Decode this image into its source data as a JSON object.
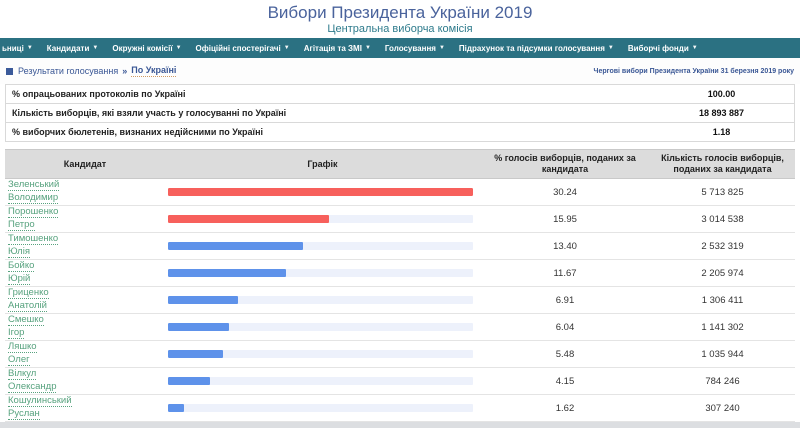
{
  "header": {
    "title": "Вибори Президента України 2019",
    "subtitle": "Центральна виборча комісія"
  },
  "nav": {
    "caret": "▼",
    "items": [
      {
        "label": "ьниці"
      },
      {
        "label": "Кандидати"
      },
      {
        "label": "Окружні комісії"
      },
      {
        "label": "Офіційні спостерігачі"
      },
      {
        "label": "Агітація та ЗМІ"
      },
      {
        "label": "Голосування"
      },
      {
        "label": "Підрахунок та підсумки голосування"
      },
      {
        "label": "Виборчі фонди"
      }
    ]
  },
  "breadcrumb": {
    "section": "Результати голосування",
    "separator": "»",
    "current": "По Україні",
    "right_note": "Чергові вибори Президента України 31 березня 2019 року"
  },
  "stats": [
    {
      "label": "% опрацьованих протоколів по Україні",
      "value": "100.00"
    },
    {
      "label": "Кількість виборців, які взяли участь у голосуванні по Україні",
      "value": "18 893 887"
    },
    {
      "label": "% виборчих бюлетенів, визнаних недійсними по Україні",
      "value": "1.18"
    }
  ],
  "table": {
    "headers": [
      "Кандидат",
      "Графік",
      "% голосів виборців, поданих за кандидата",
      "Кількість голосів виборців, поданих за кандидата"
    ]
  },
  "candidates": [
    {
      "surname": "Зеленський",
      "name": "Володимир",
      "percent": "30.24",
      "votes": "5 713 825",
      "pct": 30.24,
      "color": "red"
    },
    {
      "surname": "Порошенко",
      "name": "Петро",
      "percent": "15.95",
      "votes": "3 014 538",
      "pct": 15.95,
      "color": "red"
    },
    {
      "surname": "Тимошенко",
      "name": "Юлія",
      "percent": "13.40",
      "votes": "2 532 319",
      "pct": 13.4,
      "color": "blue"
    },
    {
      "surname": "Бойко",
      "name": "Юрій",
      "percent": "11.67",
      "votes": "2 205 974",
      "pct": 11.67,
      "color": "blue"
    },
    {
      "surname": "Гриценко",
      "name": "Анатолій",
      "percent": "6.91",
      "votes": "1 306 411",
      "pct": 6.91,
      "color": "blue"
    },
    {
      "surname": "Смешко",
      "name": "Ігор",
      "percent": "6.04",
      "votes": "1 141 302",
      "pct": 6.04,
      "color": "blue"
    },
    {
      "surname": "Ляшко",
      "name": "Олег",
      "percent": "5.48",
      "votes": "1 035 944",
      "pct": 5.48,
      "color": "blue"
    },
    {
      "surname": "Вілкул",
      "name": "Олександр",
      "percent": "4.15",
      "votes": "784 246",
      "pct": 4.15,
      "color": "blue"
    },
    {
      "surname": "Кошулинський",
      "name": "Руслан",
      "percent": "1.62",
      "votes": "307 240",
      "pct": 1.62,
      "color": "blue"
    }
  ],
  "chart_data": {
    "type": "bar",
    "orientation": "horizontal",
    "categories": [
      "Зеленський Володимир",
      "Порошенко Петро",
      "Тимошенко Юлія",
      "Бойко Юрій",
      "Гриценко Анатолій",
      "Смешко Ігор",
      "Ляшко Олег",
      "Вілкул Олександр",
      "Кошулинський Руслан"
    ],
    "values": [
      30.24,
      15.95,
      13.4,
      11.67,
      6.91,
      6.04,
      5.48,
      4.15,
      1.62
    ],
    "title": "Графік",
    "xlabel": "% голосів виборців, поданих за кандидата",
    "xlim": [
      0,
      30.24
    ],
    "bar_colors": [
      "#f7605c",
      "#f7605c",
      "#5e92ea",
      "#5e92ea",
      "#5e92ea",
      "#5e92ea",
      "#5e92ea",
      "#5e92ea",
      "#5e92ea"
    ]
  },
  "colors": {
    "bar_red": "#f7605c",
    "bar_blue": "#5e92ea",
    "bar_track": "#edf1fb",
    "nav_teal": "#2b7182",
    "title_navy": "#4a639c",
    "subtitle_teal": "#2e7b8c",
    "link_green": "#57a27e"
  }
}
